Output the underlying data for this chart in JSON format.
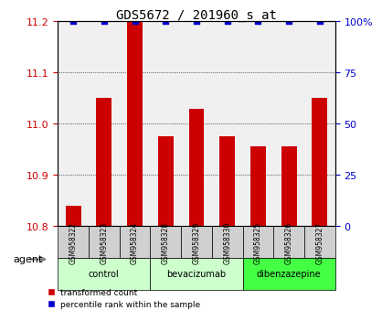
{
  "title": "GDS5672 / 201960_s_at",
  "samples": [
    "GSM958322",
    "GSM958323",
    "GSM958324",
    "GSM958328",
    "GSM958329",
    "GSM958330",
    "GSM958325",
    "GSM958326",
    "GSM958327"
  ],
  "transformed_counts": [
    10.84,
    11.05,
    11.2,
    10.975,
    11.03,
    10.975,
    10.955,
    10.955,
    11.05
  ],
  "percentile_ranks": [
    100,
    100,
    100,
    100,
    100,
    100,
    100,
    100,
    100
  ],
  "groups": [
    {
      "label": "control",
      "indices": [
        0,
        1,
        2
      ],
      "color": "#ccffcc"
    },
    {
      "label": "bevacizumab",
      "indices": [
        3,
        4,
        5
      ],
      "color": "#ccffcc"
    },
    {
      "label": "dibenzazepine",
      "indices": [
        6,
        7,
        8
      ],
      "color": "#44ff44"
    }
  ],
  "ylim_left": [
    10.8,
    11.2
  ],
  "ylim_right": [
    0,
    100
  ],
  "yticks_left": [
    10.8,
    10.9,
    11.0,
    11.1,
    11.2
  ],
  "yticks_right": [
    0,
    25,
    50,
    75,
    100
  ],
  "bar_color": "#cc0000",
  "dot_color": "#0000cc",
  "bar_width": 0.5,
  "agent_label": "agent",
  "legend_bar_label": "transformed count",
  "legend_dot_label": "percentile rank within the sample",
  "background_color": "#ffffff",
  "plot_bg_color": "#f0f0f0"
}
